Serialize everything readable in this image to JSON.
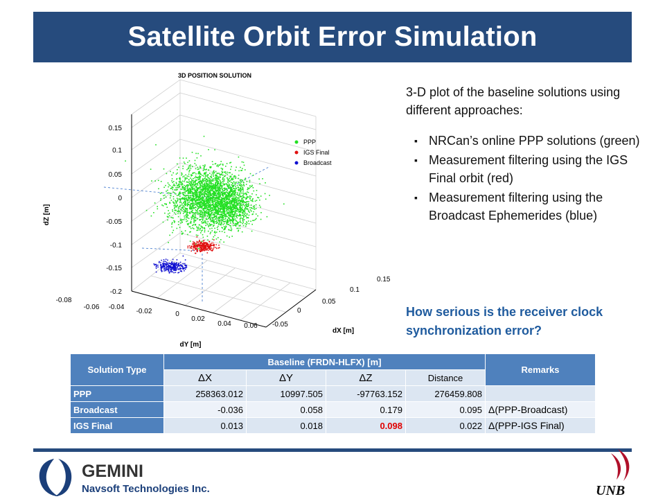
{
  "title": "Satellite Orbit Error Simulation",
  "plot": {
    "title": "3D POSITION SOLUTION",
    "xlabel": "dX [m]",
    "ylabel": "dY [m]",
    "zlabel": "dZ [m]",
    "z_ticks": [
      "0.15",
      "0.1",
      "0.05",
      "0",
      "-0.05",
      "-0.1",
      "-0.15",
      "-0.2"
    ],
    "y_ticks": [
      "-0.08",
      "-0.06",
      "-0.04",
      "-0.02",
      "0",
      "0.02",
      "0.04",
      "0.06"
    ],
    "x_ticks": [
      "-0.05",
      "0",
      "0.05",
      "0.1",
      "0.15"
    ],
    "legend": [
      {
        "label": "PPP",
        "color": "#22e022"
      },
      {
        "label": "IGS Final",
        "color": "#e01010"
      },
      {
        "label": "Broadcast",
        "color": "#1010d0"
      }
    ]
  },
  "description": {
    "intro": "3-D plot of the baseline solutions using different approaches:",
    "bullets": [
      "NRCan’s online PPP solutions (green)",
      "Measurement filtering using the IGS Final orbit (red)",
      "Measurement filtering using the Broadcast Ephemerides (blue)"
    ],
    "bullet_glyph": "▪"
  },
  "question": "How serious is the receiver clock synchronization error?",
  "table": {
    "col_solution": "Solution Type",
    "col_baseline": "Baseline (FRDN-HLFX) [m]",
    "col_remarks": "Remarks",
    "sub_dx": "ΔX",
    "sub_dy": "ΔY",
    "sub_dz": "ΔZ",
    "sub_distance": "Distance",
    "rows": [
      {
        "type": "PPP",
        "dx": "258363.012",
        "dy": "10997.505",
        "dz": "-97763.152",
        "distance": "276459.808",
        "remark": ""
      },
      {
        "type": "Broadcast",
        "dx": "-0.036",
        "dy": "0.058",
        "dz": "0.179",
        "distance": "0.095",
        "remark": "Δ(PPP-Broadcast)"
      },
      {
        "type": "IGS Final",
        "dx": "0.013",
        "dy": "0.018",
        "dz": "0.098",
        "distance": "0.022",
        "remark": "Δ(PPP-IGS Final)"
      }
    ]
  },
  "footer": {
    "company": "GEMINI",
    "company_sub": "Navsoft Technologies Inc.",
    "university": "UNB"
  },
  "colors": {
    "title_bar": "#264b7d",
    "table_header": "#4f81bd",
    "question": "#1f5b9e",
    "highlight": "#e00000"
  }
}
